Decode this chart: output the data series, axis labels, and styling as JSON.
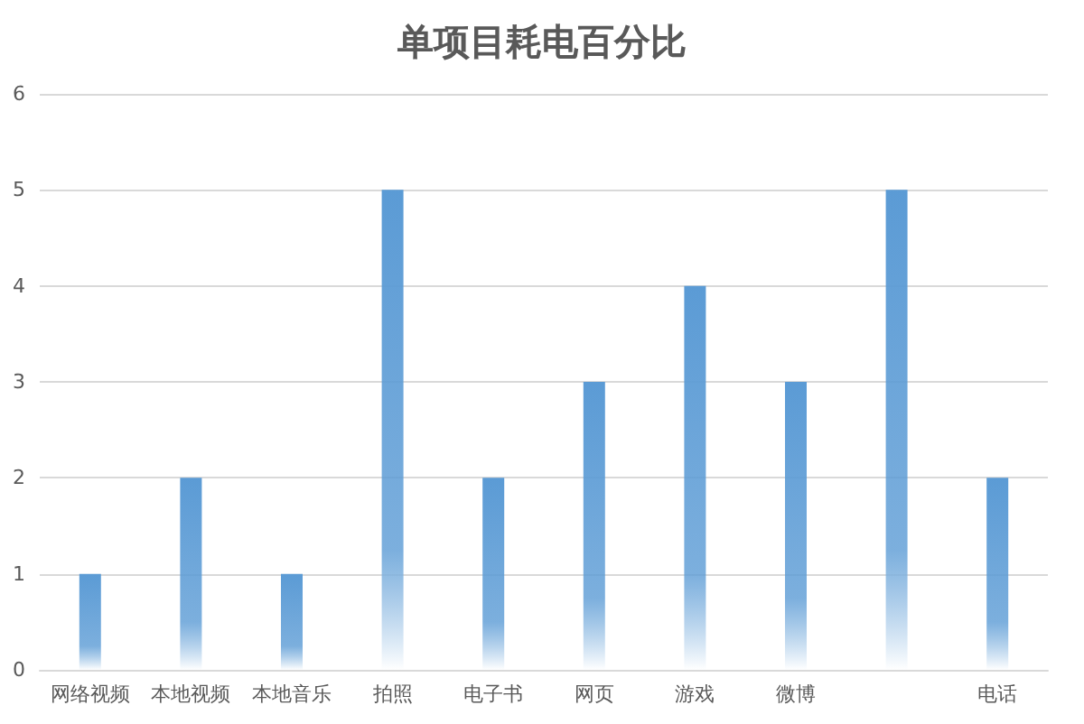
{
  "chart_data": {
    "type": "bar",
    "title": "单项目耗电百分比",
    "categories": [
      "网络视频",
      "本地视频",
      "本地音乐",
      "拍照",
      "电子书",
      "网页",
      "游戏",
      "微博",
      null,
      "电话"
    ],
    "values": [
      1,
      2,
      1,
      5,
      2,
      3,
      4,
      3,
      5,
      2
    ],
    "color": "#5b9bd5",
    "ylim": [
      0,
      6
    ],
    "yticks": [
      0,
      1,
      2,
      3,
      4,
      5,
      6
    ],
    "grid": "y"
  }
}
